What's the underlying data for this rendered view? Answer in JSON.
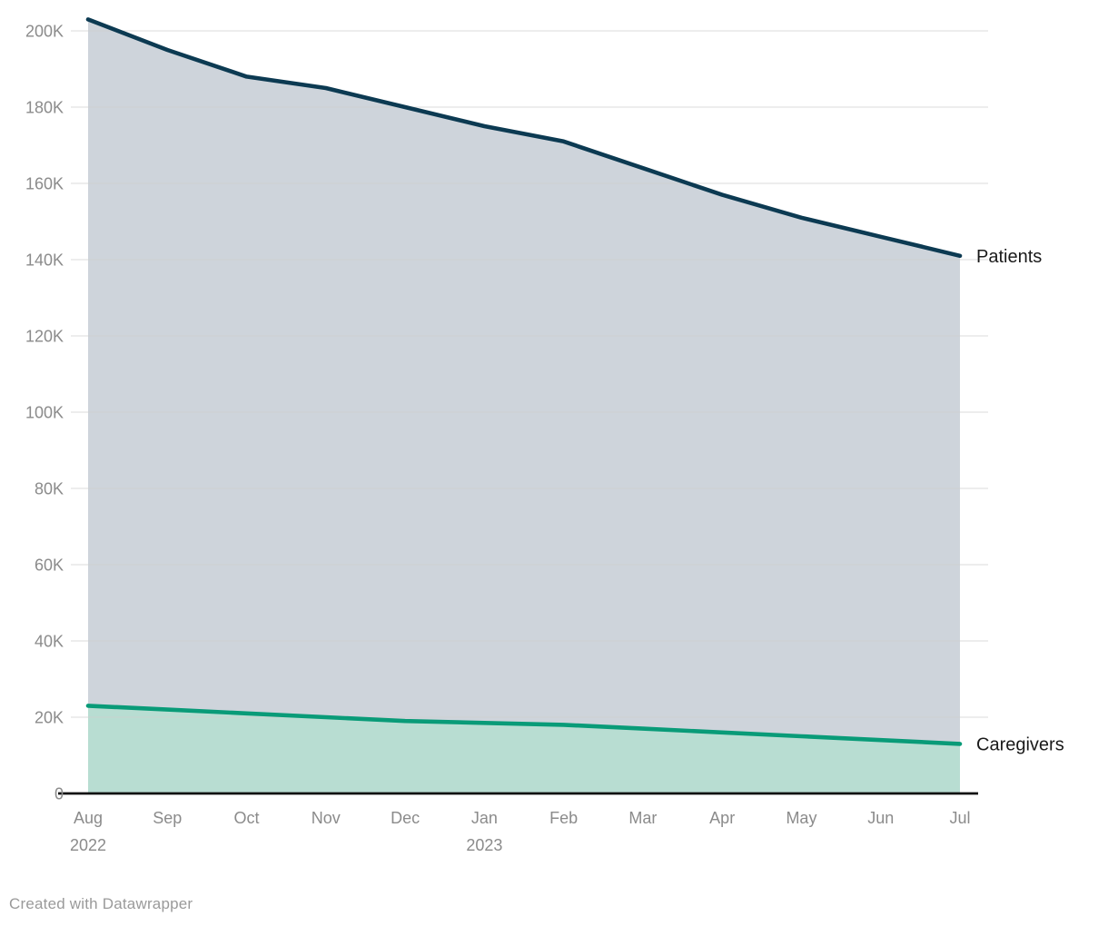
{
  "chart_data": {
    "type": "area",
    "title": "",
    "xlabel": "",
    "ylabel": "",
    "categories": [
      "Aug",
      "Sep",
      "Oct",
      "Nov",
      "Dec",
      "Jan",
      "Feb",
      "Mar",
      "Apr",
      "May",
      "Jun",
      "Jul"
    ],
    "category_sublabels": [
      "2022",
      "",
      "",
      "",
      "",
      "2023",
      "",
      "",
      "",
      "",
      "",
      ""
    ],
    "series": [
      {
        "name": "Patients",
        "values": [
          203000,
          195000,
          188000,
          185000,
          180000,
          175000,
          171000,
          164000,
          157000,
          151000,
          146000,
          141000
        ],
        "line_color": "#0c3a52",
        "fill_color": "#ced4db"
      },
      {
        "name": "Caregivers",
        "values": [
          23000,
          22000,
          21000,
          20000,
          19000,
          18500,
          18000,
          17000,
          16000,
          15000,
          14000,
          13000
        ],
        "line_color": "#099b78",
        "fill_color": "#b8ddd2"
      }
    ],
    "ylim": [
      0,
      200000
    ],
    "ytick_step": 20000,
    "ytick_labels": [
      "0",
      "20K",
      "40K",
      "60K",
      "80K",
      "100K",
      "120K",
      "140K",
      "160K",
      "180K",
      "200K"
    ],
    "grid": "horizontal",
    "gridline_color": "#cfcfcf",
    "axis_line_color": "#111111",
    "tick_label_color": "#8b8b8b",
    "series_label_color": "#1a1a1a",
    "legend_position": "direct-labels-right"
  },
  "footer": {
    "credit": "Created with Datawrapper"
  }
}
